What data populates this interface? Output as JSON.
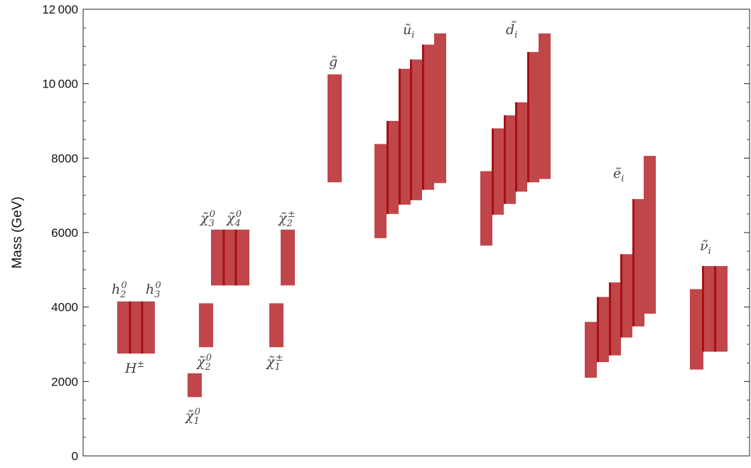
{
  "chart_data": {
    "type": "bar",
    "ylabel": "Mass (GeV)",
    "ylim": [
      0,
      12000
    ],
    "y_ticks": [
      "0",
      "2000",
      "4000",
      "6000",
      "8000",
      "10000",
      "12000"
    ],
    "grid": false,
    "bar_color": "#c0464a",
    "center_line_color": "#a61014",
    "groups": [
      {
        "name": "higgs",
        "labels": [
          "h_2^0",
          "h_3^0",
          "H^±"
        ],
        "ranges": [
          [
            2750,
            4150
          ],
          [
            2750,
            4150
          ]
        ],
        "center": [
          4150,
          4150
        ]
      },
      {
        "name": "neutralino1",
        "labels": [
          "χ̃_1^0"
        ],
        "ranges": [
          [
            1580,
            2220
          ]
        ],
        "center": [
          null
        ]
      },
      {
        "name": "neutralino2",
        "labels": [
          "χ̃_2^0"
        ],
        "ranges": [
          [
            2920,
            4100
          ]
        ],
        "center": [
          null
        ]
      },
      {
        "name": "neutralino34",
        "labels": [
          "χ̃_3^0",
          "χ̃_4^0"
        ],
        "ranges": [
          [
            4580,
            6080
          ],
          [
            4580,
            6080
          ]
        ],
        "center": [
          6080,
          6080
        ]
      },
      {
        "name": "chargino1",
        "labels": [
          "χ̃_1^±"
        ],
        "ranges": [
          [
            2920,
            4100
          ]
        ],
        "center": [
          null
        ]
      },
      {
        "name": "chargino2",
        "labels": [
          "χ̃_2^±"
        ],
        "ranges": [
          [
            4580,
            6080
          ]
        ],
        "center": [
          null
        ]
      },
      {
        "name": "gluino",
        "labels": [
          "g̃"
        ],
        "ranges": [
          [
            7350,
            10250
          ]
        ],
        "center": [
          null
        ]
      },
      {
        "name": "up-squarks",
        "labels": [
          "ũ_i"
        ],
        "ranges": [
          [
            5850,
            8380
          ],
          [
            6500,
            9000
          ],
          [
            6750,
            10400
          ],
          [
            6870,
            10650
          ],
          [
            7150,
            11050
          ],
          [
            7330,
            11350
          ]
        ],
        "center": [
          null,
          9000,
          10400,
          10650,
          11050,
          null
        ]
      },
      {
        "name": "down-squarks",
        "labels": [
          "d̃_i"
        ],
        "ranges": [
          [
            5650,
            7650
          ],
          [
            6480,
            8800
          ],
          [
            6770,
            9150
          ],
          [
            7100,
            9500
          ],
          [
            7350,
            10850
          ],
          [
            7440,
            11350
          ]
        ],
        "center": [
          null,
          8800,
          9150,
          9500,
          10850,
          null
        ]
      },
      {
        "name": "sleptons",
        "labels": [
          "ẽ_i"
        ],
        "ranges": [
          [
            2100,
            3600
          ],
          [
            2520,
            4270
          ],
          [
            2700,
            4660
          ],
          [
            3180,
            5420
          ],
          [
            3480,
            6900
          ],
          [
            3820,
            8060
          ]
        ],
        "center": [
          null,
          4270,
          4660,
          5420,
          6900,
          null
        ]
      },
      {
        "name": "sneutrinos",
        "labels": [
          "ν̃_i"
        ],
        "ranges": [
          [
            2320,
            4480
          ],
          [
            2800,
            5100
          ],
          [
            2800,
            5100
          ]
        ],
        "center": [
          null,
          5100,
          5100
        ]
      }
    ]
  }
}
